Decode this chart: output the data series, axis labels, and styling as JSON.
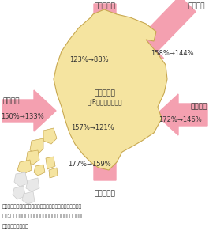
{
  "center_label_line1": "大阪都心部",
  "center_label_line2": "（JR大阪環状線内）",
  "north_label": "北大阪方面",
  "north_value": "123%→88%",
  "kyoto_label": "京都方面",
  "kyoto_value": "158%→144%",
  "nara_label": "奈良方面",
  "nara_value": "172%→146%",
  "wakayama_label": "和歌山方面",
  "wakayama_value": "177%→159%",
  "kobe_label": "神戸方面",
  "kobe_value": "150%→133%",
  "center_value": "157%→121%",
  "note_line1": "注）大阪市界を通る鉄道路線を対象に、最混雑区間の最混雑",
  "note_line2": "　　1時間あたりの輸送量と輸送力を合算して算出している。",
  "source": "資料：都市交通年報",
  "bg_color": "#ffffff",
  "map_fill": "#f5e4a0",
  "map_edge": "#c8a850",
  "arrow_color": "#f4a0b0",
  "island_fill": "#f5e4a0",
  "bay_fill": "#e8e8e8",
  "bay_edge": "#cccccc"
}
